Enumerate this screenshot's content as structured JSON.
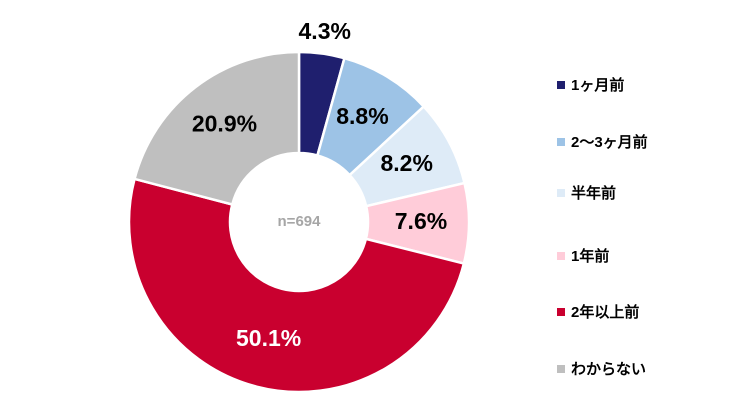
{
  "chart_data": {
    "type": "donut",
    "categories": [
      "1ヶ月前",
      "2〜3ヶ月前",
      "半年前",
      "1年前",
      "2年以上前",
      "わからない"
    ],
    "values": [
      4.3,
      8.8,
      8.2,
      7.6,
      50.1,
      20.9
    ],
    "value_labels": [
      "4.3%",
      "8.8%",
      "8.2%",
      "7.6%",
      "50.1%",
      "20.9%"
    ],
    "colors": [
      "#1f1f6e",
      "#9dc3e6",
      "#deebf7",
      "#ffccd9",
      "#c9002f",
      "#bfbfbf"
    ],
    "center_label": "n=694",
    "legend": "right"
  }
}
